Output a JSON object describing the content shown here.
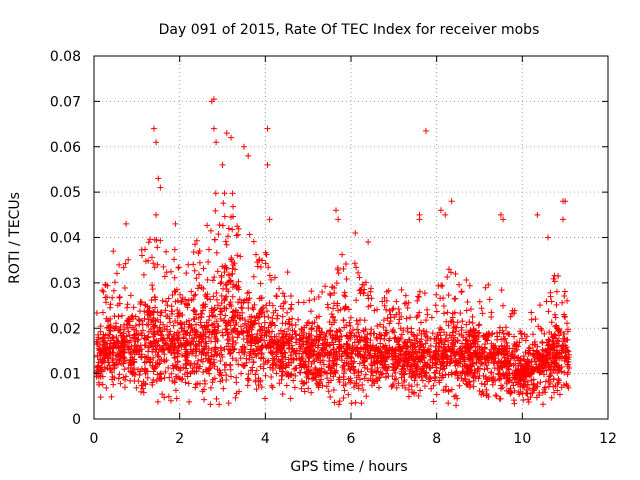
{
  "chart_data": {
    "type": "scatter",
    "title": "Day 091 of 2015, Rate Of TEC Index for receiver mobs",
    "xlabel": "GPS time / hours",
    "ylabel": "ROTI / TECUs",
    "xlim": [
      0,
      12
    ],
    "ylim": [
      0,
      0.08
    ],
    "xticks": [
      0,
      2,
      4,
      6,
      8,
      10,
      12
    ],
    "yticks": [
      0,
      0.01,
      0.02,
      0.03,
      0.04,
      0.05,
      0.06,
      0.07,
      0.08
    ],
    "xtick_labels": [
      "0",
      "2",
      "4",
      "6",
      "8",
      "10",
      "12"
    ],
    "ytick_labels": [
      "0",
      "0.01",
      "0.02",
      "0.03",
      "0.04",
      "0.05",
      "0.06",
      "0.07",
      "0.08"
    ],
    "grid": true,
    "marker": "+",
    "color": "#ff0000",
    "data_range_hours": [
      0.05,
      11.1
    ],
    "series": [
      {
        "name": "ROTI",
        "envelope": {
          "x": [
            0.0,
            0.5,
            1.0,
            1.4,
            1.8,
            2.2,
            2.6,
            2.9,
            3.2,
            3.5,
            4.0,
            4.5,
            5.0,
            5.5,
            5.8,
            6.2,
            6.6,
            7.0,
            7.5,
            8.0,
            8.4,
            8.8,
            9.2,
            9.6,
            10.0,
            10.4,
            10.8,
            11.1
          ],
          "typical": [
            0.013,
            0.015,
            0.015,
            0.016,
            0.015,
            0.016,
            0.017,
            0.019,
            0.02,
            0.018,
            0.016,
            0.015,
            0.014,
            0.014,
            0.015,
            0.014,
            0.013,
            0.013,
            0.013,
            0.013,
            0.014,
            0.013,
            0.013,
            0.012,
            0.01,
            0.011,
            0.014,
            0.013
          ],
          "spread": [
            0.01,
            0.015,
            0.017,
            0.02,
            0.018,
            0.017,
            0.022,
            0.026,
            0.025,
            0.02,
            0.017,
            0.014,
            0.013,
            0.015,
            0.02,
            0.015,
            0.012,
            0.013,
            0.012,
            0.013,
            0.017,
            0.013,
            0.014,
            0.013,
            0.009,
            0.014,
            0.016,
            0.01
          ]
        },
        "notable_points": [
          {
            "x": 1.4,
            "y": 0.064
          },
          {
            "x": 1.45,
            "y": 0.061
          },
          {
            "x": 1.5,
            "y": 0.053
          },
          {
            "x": 1.55,
            "y": 0.051
          },
          {
            "x": 1.45,
            "y": 0.045
          },
          {
            "x": 2.75,
            "y": 0.07
          },
          {
            "x": 2.8,
            "y": 0.0705
          },
          {
            "x": 2.8,
            "y": 0.064
          },
          {
            "x": 2.85,
            "y": 0.061
          },
          {
            "x": 3.1,
            "y": 0.063
          },
          {
            "x": 3.2,
            "y": 0.062
          },
          {
            "x": 3.5,
            "y": 0.06
          },
          {
            "x": 3.6,
            "y": 0.058
          },
          {
            "x": 3.0,
            "y": 0.056
          },
          {
            "x": 4.05,
            "y": 0.064
          },
          {
            "x": 4.05,
            "y": 0.056
          },
          {
            "x": 4.1,
            "y": 0.044
          },
          {
            "x": 7.75,
            "y": 0.0635
          },
          {
            "x": 8.35,
            "y": 0.048
          },
          {
            "x": 8.1,
            "y": 0.046
          },
          {
            "x": 8.2,
            "y": 0.045
          },
          {
            "x": 7.6,
            "y": 0.045
          },
          {
            "x": 7.6,
            "y": 0.044
          },
          {
            "x": 9.5,
            "y": 0.045
          },
          {
            "x": 9.55,
            "y": 0.044
          },
          {
            "x": 10.35,
            "y": 0.045
          },
          {
            "x": 10.95,
            "y": 0.048
          },
          {
            "x": 11.0,
            "y": 0.048
          },
          {
            "x": 10.95,
            "y": 0.044
          },
          {
            "x": 5.65,
            "y": 0.046
          },
          {
            "x": 5.7,
            "y": 0.044
          },
          {
            "x": 0.75,
            "y": 0.043
          },
          {
            "x": 0.45,
            "y": 0.037
          },
          {
            "x": 1.9,
            "y": 0.043
          },
          {
            "x": 6.4,
            "y": 0.039
          },
          {
            "x": 6.1,
            "y": 0.041
          },
          {
            "x": 10.6,
            "y": 0.04
          }
        ]
      }
    ]
  }
}
